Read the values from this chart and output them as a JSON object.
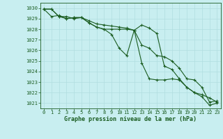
{
  "title": "Graphe pression niveau de la mer (hPa)",
  "background_color": "#c8eef0",
  "grid_color": "#b0dde0",
  "line_color": "#1a5c20",
  "xlim": [
    -0.5,
    23.5
  ],
  "ylim": [
    1020.5,
    1030.5
  ],
  "yticks": [
    1021,
    1022,
    1023,
    1024,
    1025,
    1026,
    1027,
    1028,
    1029,
    1030
  ],
  "xticks": [
    0,
    1,
    2,
    3,
    4,
    5,
    6,
    7,
    8,
    9,
    10,
    11,
    12,
    13,
    14,
    15,
    16,
    17,
    18,
    19,
    20,
    21,
    22,
    23
  ],
  "series": [
    [
      1029.9,
      1029.9,
      1029.2,
      1029.2,
      1029.0,
      1029.1,
      1028.6,
      1028.2,
      1028.0,
      1028.0,
      1028.0,
      1028.0,
      1027.9,
      1028.4,
      1028.1,
      1027.6,
      1024.5,
      1024.2,
      1023.3,
      1022.5,
      1022.0,
      1021.8,
      1021.5,
      1021.1
    ],
    [
      1029.9,
      1029.9,
      1029.2,
      1029.0,
      1029.1,
      1029.1,
      1028.8,
      1028.5,
      1028.4,
      1028.3,
      1028.2,
      1028.1,
      1027.9,
      1026.5,
      1026.2,
      1025.5,
      1025.4,
      1025.0,
      1024.3,
      1023.3,
      1023.2,
      1022.5,
      1021.1,
      1021.2
    ],
    [
      1029.9,
      1029.2,
      1029.3,
      1029.0,
      1029.1,
      1029.1,
      1028.6,
      1028.2,
      1028.0,
      1027.5,
      1026.2,
      1025.5,
      1027.9,
      1024.8,
      1023.3,
      1023.2,
      1023.2,
      1023.3,
      1023.2,
      1022.5,
      1022.0,
      1021.6,
      1020.8,
      1021.0
    ]
  ],
  "figsize": [
    3.2,
    2.0
  ],
  "dpi": 100
}
